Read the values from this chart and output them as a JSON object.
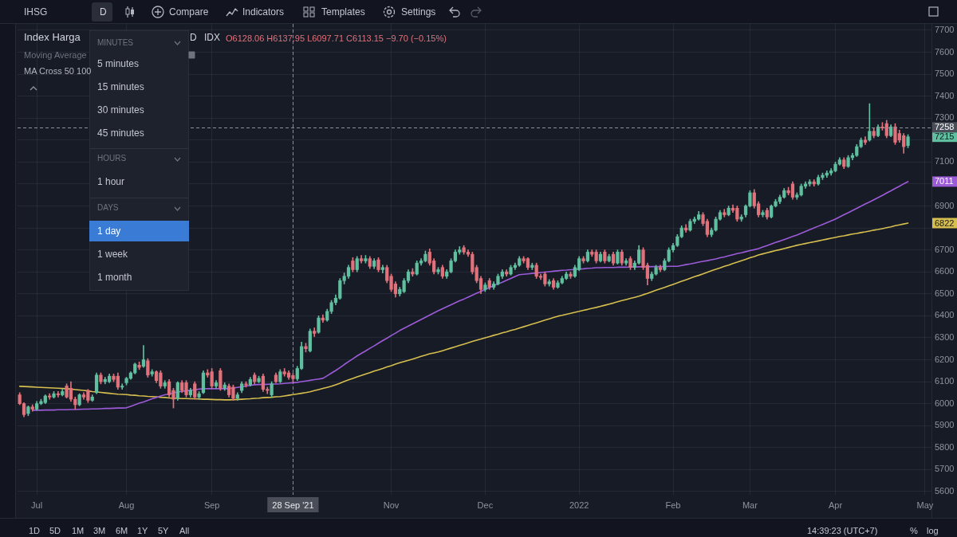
{
  "chart_data": {
    "type": "candlestick",
    "title": "Index Harga",
    "categories": [
      null,
      null,
      null,
      null,
      "Jul",
      null,
      null,
      null,
      null,
      null,
      null,
      null,
      null,
      null,
      null,
      null,
      null,
      null,
      null,
      null,
      null,
      null,
      null,
      null,
      null,
      "Aug",
      null,
      null,
      null,
      null,
      null,
      null,
      null,
      null,
      null,
      null,
      null,
      null,
      null,
      null,
      null,
      null,
      null,
      null,
      null,
      "Sep",
      null,
      null,
      null,
      null,
      null,
      null,
      null,
      null,
      null,
      null,
      null,
      null,
      null,
      null,
      null,
      null,
      null,
      null,
      "28 Sep '21",
      null,
      null,
      null,
      null,
      null,
      null,
      null,
      null,
      null,
      null,
      null,
      null,
      null,
      null,
      null,
      null,
      null,
      null,
      null,
      null,
      null,
      null,
      "Nov",
      null,
      null,
      null,
      null,
      null,
      null,
      null,
      null,
      null,
      null,
      null,
      null,
      null,
      null,
      null,
      null,
      null,
      null,
      null,
      null,
      null,
      "Dec",
      null,
      null,
      null,
      null,
      null,
      null,
      null,
      null,
      null,
      null,
      null,
      null,
      null,
      null,
      null,
      null,
      null,
      null,
      null,
      null,
      null,
      "2022",
      null,
      null,
      null,
      null,
      null,
      null,
      null,
      null,
      null,
      null,
      null,
      null,
      null,
      null,
      null,
      null,
      null,
      null,
      null,
      null,
      null,
      "Feb",
      null,
      null,
      null,
      null,
      null,
      null,
      null,
      null,
      null,
      null,
      null,
      null,
      null,
      null,
      null,
      null,
      null,
      "Mar",
      null,
      null,
      null,
      null,
      null,
      null,
      null,
      null,
      null,
      null,
      null,
      null,
      null,
      null,
      null,
      null,
      null,
      null,
      null,
      "Apr",
      null,
      null,
      null,
      null,
      null,
      null,
      null,
      null,
      null,
      null,
      null,
      null,
      null,
      null,
      null,
      null,
      null,
      null,
      null,
      null,
      "May",
      null
    ],
    "ylim": [
      5585,
      7729
    ],
    "yticks": [
      5600,
      5700,
      5800,
      5900,
      6000,
      6100,
      6200,
      6300,
      6400,
      6500,
      6600,
      6700,
      {
        "value": 6800,
        "label": null
      },
      6900,
      {
        "value": 7000,
        "label": null
      },
      7100,
      {
        "value": 7200,
        "label": null
      },
      7300,
      7400,
      7500,
      7600,
      7700
    ],
    "grid": true,
    "series": [
      {
        "type": "line",
        "color": "#9c5bd8",
        "values": [
          null,
          null,
          null,
          5970,
          5970,
          5970,
          5971,
          5971,
          5971,
          5972,
          5972,
          5972,
          5973,
          5973,
          5974,
          5975,
          5975,
          5976,
          5976,
          5977,
          5978,
          5978,
          5979,
          5980,
          5980,
          5981,
          5988,
          5995,
          6002,
          6008,
          6015,
          6022,
          6028,
          6035,
          6040,
          6044,
          6049,
          6053,
          6056,
          6058,
          6061,
          6063,
          6066,
          6068,
          6068,
          6068,
          6068,
          6068,
          6068,
          6068,
          6071,
          6074,
          6077,
          6080,
          6083,
          6086,
          6087,
          6087,
          6088,
          6089,
          6089,
          6090,
          6092,
          6094,
          6095,
          6097,
          6100,
          6103,
          6106,
          6109,
          6112,
          6115,
          6127,
          6139,
          6151,
          6164,
          6178,
          6191,
          6204,
          6217,
          6229,
          6240,
          6252,
          6263,
          6275,
          6287,
          6298,
          6310,
          6321,
          6333,
          6343,
          6353,
          6363,
          6373,
          6383,
          6393,
          6403,
          6413,
          6423,
          6432,
          6441,
          6450,
          6459,
          6468,
          6476,
          6485,
          6494,
          6503,
          6511,
          6520,
          6528,
          6537,
          6545,
          6553,
          6562,
          6570,
          6579,
          6587,
          6589,
          6591,
          6593,
          6595,
          6597,
          6599,
          6601,
          6603,
          6605,
          6607,
          6608,
          6610,
          6611,
          6613,
          6614,
          6616,
          6617,
          6619,
          6619,
          6620,
          6620,
          6620,
          6621,
          6621,
          6621,
          6622,
          6622,
          6623,
          6623,
          6623,
          6624,
          6624,
          6624,
          6624,
          6625,
          6625,
          6625,
          6629,
          6633,
          6636,
          6640,
          6644,
          6648,
          6651,
          6655,
          6659,
          6664,
          6668,
          6673,
          6678,
          6683,
          6687,
          6692,
          6697,
          6701,
          6706,
          6713,
          6720,
          6727,
          6734,
          6740,
          6747,
          6754,
          6761,
          6768,
          6776,
          6784,
          6792,
          6800,
          6808,
          6816,
          6824,
          6832,
          6840,
          6850,
          6860,
          6869,
          6879,
          6889,
          6899,
          6909,
          6918,
          6928,
          6938,
          6948,
          6959,
          6969,
          6980,
          6990,
          7001,
          7011,
          null,
          null,
          null,
          null,
          null
        ]
      },
      {
        "type": "line",
        "color": "#d6bf4e",
        "values": [
          6079,
          6078,
          6077,
          6076,
          6075,
          6074,
          6073,
          6072,
          6071,
          6070,
          6069,
          6068,
          6066,
          6064,
          6062,
          6060,
          6058,
          6055,
          6053,
          6051,
          6049,
          6047,
          6045,
          6043,
          6042,
          6041,
          6039,
          6038,
          6036,
          6035,
          6033,
          6032,
          6031,
          6029,
          6028,
          6026,
          6025,
          6024,
          6023,
          6023,
          6022,
          6022,
          6021,
          6020,
          6020,
          6019,
          6018,
          6018,
          6017,
          6017,
          6018,
          6019,
          6020,
          6021,
          6022,
          6024,
          6025,
          6027,
          6028,
          6029,
          6031,
          6032,
          6035,
          6038,
          6041,
          6044,
          6047,
          6050,
          6054,
          6059,
          6064,
          6069,
          6074,
          6079,
          6086,
          6093,
          6101,
          6108,
          6115,
          6122,
          6128,
          6135,
          6141,
          6148,
          6154,
          6160,
          6167,
          6173,
          6180,
          6186,
          6192,
          6197,
          6203,
          6209,
          6215,
          6221,
          6227,
          6231,
          6235,
          6241,
          6247,
          6253,
          6259,
          6265,
          6271,
          6277,
          6283,
          6289,
          6294,
          6300,
          6305,
          6311,
          6316,
          6322,
          6327,
          6333,
          6338,
          6344,
          6350,
          6356,
          6362,
          6368,
          6374,
          6380,
          6386,
          6392,
          6398,
          6402,
          6407,
          6411,
          6416,
          6420,
          6425,
          6429,
          6434,
          6438,
          6443,
          6448,
          6453,
          6458,
          6464,
          6469,
          6474,
          6479,
          6484,
          6489,
          6496,
          6502,
          6509,
          6516,
          6523,
          6529,
          6536,
          6543,
          6550,
          6557,
          6564,
          6571,
          6578,
          6584,
          6591,
          6598,
          6605,
          6612,
          6618,
          6625,
          6631,
          6638,
          6644,
          6651,
          6657,
          6664,
          6670,
          6677,
          6682,
          6687,
          6692,
          6697,
          6701,
          6706,
          6711,
          6716,
          6721,
          6725,
          6729,
          6733,
          6737,
          6741,
          6745,
          6749,
          6753,
          6757,
          6761,
          6764,
          6768,
          6772,
          6775,
          6779,
          6782,
          6786,
          6790,
          6793,
          6797,
          6801,
          6805,
          6810,
          6814,
          6818,
          6822,
          null,
          null,
          null,
          null,
          null
        ]
      },
      {
        "ohlc": [
          [
            6040,
            6050,
            5995,
            6000
          ],
          [
            6000,
            6005,
            5940,
            5950
          ],
          [
            5955,
            5990,
            5945,
            5985
          ],
          [
            5985,
            5995,
            5965,
            5975
          ],
          [
            5975,
            6010,
            5970,
            6000
          ],
          [
            6000,
            6020,
            5995,
            6010
          ],
          [
            6005,
            6040,
            6000,
            6035
          ],
          [
            6035,
            6045,
            6020,
            6030
          ],
          [
            6030,
            6055,
            6025,
            6045
          ],
          [
            6045,
            6055,
            6030,
            6040
          ],
          [
            6040,
            6065,
            6035,
            6055
          ],
          [
            6080,
            6090,
            6025,
            6030
          ],
          [
            6070,
            6100,
            6010,
            6020
          ],
          [
            6020,
            6030,
            5975,
            5995
          ],
          [
            5995,
            6045,
            5990,
            6040
          ],
          [
            6040,
            6050,
            6020,
            6030
          ],
          [
            6060,
            6065,
            6005,
            6015
          ],
          [
            6015,
            6040,
            6010,
            6030
          ],
          [
            6050,
            6140,
            6045,
            6130
          ],
          [
            6130,
            6140,
            6090,
            6100
          ],
          [
            6100,
            6120,
            6090,
            6110
          ],
          [
            6100,
            6135,
            6095,
            6125
          ],
          [
            6125,
            6135,
            6100,
            6110
          ],
          [
            6125,
            6140,
            6065,
            6075
          ],
          [
            6075,
            6090,
            6065,
            6080
          ],
          [
            6095,
            6120,
            6085,
            6115
          ],
          [
            6115,
            6145,
            6110,
            6140
          ],
          [
            6140,
            6185,
            6135,
            6180
          ],
          [
            6175,
            6190,
            6155,
            6165
          ],
          [
            6170,
            6265,
            6165,
            6200
          ],
          [
            6195,
            6205,
            6120,
            6130
          ],
          [
            6135,
            6155,
            6125,
            6145
          ],
          [
            6145,
            6150,
            6095,
            6105
          ],
          [
            6140,
            6150,
            6070,
            6080
          ],
          [
            6080,
            6105,
            6070,
            6095
          ],
          [
            6100,
            6110,
            6030,
            6040
          ],
          [
            6060,
            6070,
            5980,
            6020
          ],
          [
            6025,
            6100,
            6015,
            6095
          ],
          [
            6095,
            6105,
            6050,
            6060
          ],
          [
            6095,
            6105,
            6030,
            6040
          ],
          [
            6040,
            6070,
            6030,
            6060
          ],
          [
            6090,
            6100,
            6020,
            6030
          ],
          [
            6030,
            6055,
            6020,
            6045
          ],
          [
            6050,
            6150,
            6045,
            6140
          ],
          [
            6140,
            6155,
            6120,
            6130
          ],
          [
            6145,
            6160,
            6070,
            6080
          ],
          [
            6080,
            6105,
            6070,
            6095
          ],
          [
            6150,
            6160,
            6060,
            6070
          ],
          [
            6070,
            6095,
            6060,
            6085
          ],
          [
            6080,
            6090,
            6030,
            6040
          ],
          [
            6075,
            6085,
            6015,
            6025
          ],
          [
            6025,
            6050,
            6015,
            6040
          ],
          [
            6060,
            6100,
            6050,
            6090
          ],
          [
            6090,
            6100,
            6075,
            6085
          ],
          [
            6085,
            6120,
            6080,
            6110
          ],
          [
            6130,
            6140,
            6090,
            6100
          ],
          [
            6100,
            6125,
            6095,
            6115
          ],
          [
            6125,
            6135,
            6055,
            6065
          ],
          [
            6065,
            6075,
            6045,
            6060
          ],
          [
            6040,
            6100,
            6030,
            6090
          ],
          [
            6130,
            6140,
            6095,
            6100
          ],
          [
            6100,
            6155,
            6095,
            6145
          ],
          [
            6145,
            6160,
            6125,
            6135
          ],
          [
            6140,
            6150,
            6110,
            6120
          ],
          [
            6128.06,
            6137.95,
            6097.71,
            6113.15
          ],
          [
            6113,
            6170,
            6105,
            6160
          ],
          [
            6160,
            6280,
            6155,
            6260
          ],
          [
            6260,
            6275,
            6235,
            6250
          ],
          [
            6240,
            6340,
            6235,
            6330
          ],
          [
            6330,
            6345,
            6305,
            6320
          ],
          [
            6325,
            6400,
            6320,
            6390
          ],
          [
            6390,
            6405,
            6370,
            6380
          ],
          [
            6380,
            6430,
            6375,
            6420
          ],
          [
            6420,
            6470,
            6410,
            6460
          ],
          [
            6460,
            6495,
            6450,
            6480
          ],
          [
            6480,
            6570,
            6475,
            6560
          ],
          [
            6560,
            6595,
            6545,
            6580
          ],
          [
            6580,
            6630,
            6570,
            6620
          ],
          [
            6650,
            6665,
            6600,
            6610
          ],
          [
            6610,
            6670,
            6600,
            6660
          ],
          [
            6660,
            6675,
            6640,
            6650
          ],
          [
            6650,
            6675,
            6640,
            6660
          ],
          [
            6660,
            6670,
            6615,
            6625
          ],
          [
            6625,
            6660,
            6615,
            6650
          ],
          [
            6655,
            6665,
            6600,
            6610
          ],
          [
            6610,
            6630,
            6595,
            6620
          ],
          [
            6620,
            6630,
            6550,
            6560
          ],
          [
            6580,
            6590,
            6510,
            6520
          ],
          [
            6545,
            6555,
            6485,
            6500
          ],
          [
            6500,
            6530,
            6490,
            6520
          ],
          [
            6510,
            6570,
            6505,
            6560
          ],
          [
            6560,
            6610,
            6550,
            6600
          ],
          [
            6600,
            6615,
            6580,
            6590
          ],
          [
            6590,
            6650,
            6585,
            6640
          ],
          [
            6640,
            6660,
            6630,
            6650
          ],
          [
            6650,
            6695,
            6645,
            6680
          ],
          [
            6690,
            6705,
            6630,
            6640
          ],
          [
            6650,
            6660,
            6590,
            6600
          ],
          [
            6600,
            6620,
            6590,
            6610
          ],
          [
            6620,
            6630,
            6570,
            6580
          ],
          [
            6580,
            6610,
            6570,
            6600
          ],
          [
            6600,
            6660,
            6595,
            6650
          ],
          [
            6650,
            6700,
            6645,
            6690
          ],
          [
            6690,
            6715,
            6680,
            6700
          ],
          [
            6710,
            6720,
            6680,
            6690
          ],
          [
            6690,
            6700,
            6670,
            6680
          ],
          [
            6680,
            6690,
            6590,
            6600
          ],
          [
            6620,
            6630,
            6550,
            6560
          ],
          [
            6570,
            6580,
            6500,
            6520
          ],
          [
            6520,
            6550,
            6510,
            6540
          ],
          [
            6560,
            6570,
            6520,
            6530
          ],
          [
            6530,
            6555,
            6520,
            6545
          ],
          [
            6545,
            6590,
            6540,
            6580
          ],
          [
            6580,
            6610,
            6570,
            6600
          ],
          [
            6600,
            6610,
            6580,
            6590
          ],
          [
            6590,
            6630,
            6585,
            6620
          ],
          [
            6620,
            6640,
            6610,
            6630
          ],
          [
            6630,
            6670,
            6625,
            6660
          ],
          [
            6660,
            6670,
            6640,
            6650
          ],
          [
            6660,
            6665,
            6610,
            6620
          ],
          [
            6620,
            6640,
            6610,
            6630
          ],
          [
            6630,
            6640,
            6570,
            6580
          ],
          [
            6580,
            6590,
            6565,
            6575
          ],
          [
            6590,
            6600,
            6535,
            6545
          ],
          [
            6545,
            6565,
            6535,
            6555
          ],
          [
            6560,
            6570,
            6520,
            6530
          ],
          [
            6530,
            6560,
            6525,
            6550
          ],
          [
            6550,
            6580,
            6545,
            6570
          ],
          [
            6570,
            6600,
            6565,
            6590
          ],
          [
            6590,
            6600,
            6570,
            6580
          ],
          [
            6580,
            6630,
            6575,
            6620
          ],
          [
            6610,
            6670,
            6605,
            6660
          ],
          [
            6660,
            6670,
            6640,
            6650
          ],
          [
            6650,
            6700,
            6645,
            6690
          ],
          [
            6690,
            6700,
            6670,
            6680
          ],
          [
            6690,
            6700,
            6640,
            6650
          ],
          [
            6650,
            6690,
            6645,
            6680
          ],
          [
            6690,
            6700,
            6640,
            6650
          ],
          [
            6650,
            6680,
            6645,
            6670
          ],
          [
            6680,
            6690,
            6630,
            6640
          ],
          [
            6640,
            6700,
            6635,
            6690
          ],
          [
            6690,
            6700,
            6630,
            6640
          ],
          [
            6640,
            6660,
            6630,
            6650
          ],
          [
            6660,
            6670,
            6610,
            6620
          ],
          [
            6620,
            6650,
            6610,
            6640
          ],
          [
            6640,
            6720,
            6635,
            6700
          ],
          [
            6700,
            6710,
            6610,
            6620
          ],
          [
            6630,
            6640,
            6540,
            6570
          ],
          [
            6570,
            6600,
            6560,
            6590
          ],
          [
            6590,
            6630,
            6585,
            6620
          ],
          [
            6620,
            6630,
            6600,
            6610
          ],
          [
            6610,
            6660,
            6605,
            6650
          ],
          [
            6650,
            6710,
            6645,
            6700
          ],
          [
            6700,
            6730,
            6690,
            6720
          ],
          [
            6720,
            6770,
            6715,
            6760
          ],
          [
            6760,
            6810,
            6755,
            6800
          ],
          [
            6800,
            6815,
            6780,
            6790
          ],
          [
            6790,
            6840,
            6785,
            6830
          ],
          [
            6830,
            6850,
            6820,
            6840
          ],
          [
            6840,
            6875,
            6835,
            6860
          ],
          [
            6860,
            6870,
            6810,
            6820
          ],
          [
            6830,
            6840,
            6760,
            6770
          ],
          [
            6770,
            6800,
            6760,
            6790
          ],
          [
            6790,
            6850,
            6785,
            6840
          ],
          [
            6840,
            6880,
            6835,
            6870
          ],
          [
            6870,
            6885,
            6850,
            6860
          ],
          [
            6860,
            6900,
            6855,
            6890
          ],
          [
            6890,
            6905,
            6870,
            6880
          ],
          [
            6890,
            6900,
            6830,
            6840
          ],
          [
            6840,
            6860,
            6830,
            6850
          ],
          [
            6860,
            6905,
            6850,
            6900
          ],
          [
            6900,
            6970,
            6895,
            6960
          ],
          [
            6960,
            6975,
            6890,
            6900
          ],
          [
            6910,
            6920,
            6850,
            6860
          ],
          [
            6860,
            6880,
            6850,
            6870
          ],
          [
            6880,
            6890,
            6840,
            6850
          ],
          [
            6850,
            6905,
            6845,
            6900
          ],
          [
            6900,
            6930,
            6895,
            6920
          ],
          [
            6920,
            6950,
            6910,
            6940
          ],
          [
            6940,
            6980,
            6935,
            6970
          ],
          [
            6970,
            6985,
            6950,
            6960
          ],
          [
            7000,
            7010,
            6930,
            6940
          ],
          [
            6940,
            6960,
            6930,
            6950
          ],
          [
            6950,
            7000,
            6945,
            6990
          ],
          [
            6990,
            7010,
            6980,
            7000
          ],
          [
            7000,
            7020,
            6990,
            7010
          ],
          [
            7010,
            7020,
            6990,
            7000
          ],
          [
            7000,
            7040,
            6995,
            7030
          ],
          [
            7030,
            7050,
            7020,
            7040
          ],
          [
            7040,
            7060,
            7030,
            7050
          ],
          [
            7050,
            7070,
            7040,
            7060
          ],
          [
            7060,
            7100,
            7055,
            7090
          ],
          [
            7090,
            7120,
            7085,
            7110
          ],
          [
            7110,
            7120,
            7070,
            7080
          ],
          [
            7080,
            7130,
            7075,
            7120
          ],
          [
            7120,
            7140,
            7110,
            7130
          ],
          [
            7130,
            7180,
            7125,
            7170
          ],
          [
            7170,
            7210,
            7165,
            7200
          ],
          [
            7200,
            7215,
            7180,
            7190
          ],
          [
            7200,
            7366,
            7195,
            7240
          ],
          [
            7240,
            7255,
            7210,
            7220
          ],
          [
            7220,
            7270,
            7215,
            7260
          ],
          [
            7260,
            7280,
            7245,
            7255
          ],
          [
            7275,
            7290,
            7210,
            7220
          ],
          [
            7220,
            7270,
            7215,
            7260
          ],
          [
            7260,
            7275,
            7180,
            7190
          ],
          [
            7230,
            7245,
            7190,
            7200
          ],
          [
            7220,
            7230,
            7140,
            7170
          ],
          [
            7175,
            7225,
            7165,
            7215
          ],
          null,
          null,
          null,
          null,
          null
        ],
        "colors": [
          "#e0727c",
          "#e0727c",
          "#5fbf9f",
          "#e0727c",
          "#5fbf9f",
          "#5fbf9f",
          "#5fbf9f",
          "#e0727c",
          "#5fbf9f",
          "#e0727c",
          "#5fbf9f",
          "#e0727c",
          "#e0727c",
          "#e0727c",
          "#5fbf9f",
          "#e0727c",
          "#e0727c",
          "#5fbf9f",
          "#5fbf9f",
          "#e0727c",
          "#5fbf9f",
          "#5fbf9f",
          "#e0727c",
          "#e0727c",
          "#5fbf9f",
          "#5fbf9f",
          "#5fbf9f",
          "#5fbf9f",
          "#e0727c",
          "#5fbf9f",
          "#e0727c",
          "#5fbf9f",
          "#e0727c",
          "#e0727c",
          "#5fbf9f",
          "#e0727c",
          "#e0727c",
          "#5fbf9f",
          "#e0727c",
          "#e0727c",
          "#5fbf9f",
          "#e0727c",
          "#5fbf9f",
          "#5fbf9f",
          "#e0727c",
          "#e0727c",
          "#5fbf9f",
          "#e0727c",
          "#5fbf9f",
          "#e0727c",
          "#e0727c",
          "#5fbf9f",
          "#5fbf9f",
          "#e0727c",
          "#5fbf9f",
          "#e0727c",
          "#5fbf9f",
          "#e0727c",
          "#e0727c",
          "#5fbf9f",
          "#e0727c",
          "#5fbf9f",
          "#e0727c",
          "#e0727c",
          "#e0727c",
          "#5fbf9f",
          "#5fbf9f",
          "#e0727c",
          "#5fbf9f",
          "#e0727c",
          "#5fbf9f",
          "#e0727c",
          "#5fbf9f",
          "#5fbf9f",
          "#5fbf9f",
          "#5fbf9f",
          "#5fbf9f",
          "#5fbf9f",
          "#e0727c",
          "#5fbf9f",
          "#e0727c",
          "#5fbf9f",
          "#e0727c",
          "#5fbf9f",
          "#e0727c",
          "#5fbf9f",
          "#e0727c",
          "#e0727c",
          "#e0727c",
          "#5fbf9f",
          "#5fbf9f",
          "#5fbf9f",
          "#e0727c",
          "#5fbf9f",
          "#5fbf9f",
          "#5fbf9f",
          "#e0727c",
          "#e0727c",
          "#5fbf9f",
          "#e0727c",
          "#5fbf9f",
          "#5fbf9f",
          "#5fbf9f",
          "#5fbf9f",
          "#e0727c",
          "#e0727c",
          "#e0727c",
          "#e0727c",
          "#e0727c",
          "#5fbf9f",
          "#e0727c",
          "#5fbf9f",
          "#5fbf9f",
          "#5fbf9f",
          "#e0727c",
          "#5fbf9f",
          "#5fbf9f",
          "#5fbf9f",
          "#e0727c",
          "#e0727c",
          "#5fbf9f",
          "#e0727c",
          "#e0727c",
          "#e0727c",
          "#5fbf9f",
          "#e0727c",
          "#5fbf9f",
          "#5fbf9f",
          "#5fbf9f",
          "#e0727c",
          "#5fbf9f",
          "#5fbf9f",
          "#e0727c",
          "#5fbf9f",
          "#e0727c",
          "#e0727c",
          "#5fbf9f",
          "#e0727c",
          "#5fbf9f",
          "#e0727c",
          "#5fbf9f",
          "#e0727c",
          "#5fbf9f",
          "#e0727c",
          "#5fbf9f",
          "#5fbf9f",
          "#e0727c",
          "#e0727c",
          "#5fbf9f",
          "#5fbf9f",
          "#e0727c",
          "#5fbf9f",
          "#5fbf9f",
          "#5fbf9f",
          "#5fbf9f",
          "#5fbf9f",
          "#e0727c",
          "#5fbf9f",
          "#5fbf9f",
          "#5fbf9f",
          "#e0727c",
          "#e0727c",
          "#5fbf9f",
          "#5fbf9f",
          "#5fbf9f",
          "#e0727c",
          "#5fbf9f",
          "#e0727c",
          "#e0727c",
          "#5fbf9f",
          "#5fbf9f",
          "#5fbf9f",
          "#e0727c",
          "#e0727c",
          "#5fbf9f",
          "#e0727c",
          "#5fbf9f",
          "#5fbf9f",
          "#5fbf9f",
          "#5fbf9f",
          "#e0727c",
          "#e0727c",
          "#5fbf9f",
          "#5fbf9f",
          "#5fbf9f",
          "#5fbf9f",
          "#e0727c",
          "#5fbf9f",
          "#5fbf9f",
          "#5fbf9f",
          "#5fbf9f",
          "#5fbf9f",
          "#5fbf9f",
          "#e0727c",
          "#5fbf9f",
          "#5fbf9f",
          "#5fbf9f",
          "#5fbf9f",
          "#e0727c",
          "#5fbf9f",
          "#e0727c",
          "#5fbf9f",
          "#e0727c",
          "#e0727c",
          "#5fbf9f",
          "#e0727c",
          "#e0727c",
          "#e0727c",
          "#5fbf9f",
          null,
          null,
          null,
          null,
          null
        ]
      }
    ],
    "ref_lines": [
      {
        "axis": "x",
        "value": "28 Sep '21",
        "line_style": "dashed",
        "color": "#8d909a"
      },
      {
        "axis": "y",
        "value": 7258,
        "label": "7258",
        "line_style": "dashed",
        "color": "#8d909a"
      }
    ],
    "annotations": [
      "IHSG",
      "D",
      "Compare",
      "Indicators",
      "Templates",
      "Settings",
      "Moving Average",
      "MA Cross 50 100",
      "D",
      "IDX",
      "O6128.06 H6137.95 L6097.71 C6113.15 −9.70 (−0.15%)",
      "MINUTES",
      "5 minutes",
      "15 minutes",
      "30 minutes",
      "45 minutes",
      "HOURS",
      "1 hour",
      "DAYS",
      "1 day",
      "1 week",
      "1 month",
      "1D",
      "5D",
      "1M",
      "3M",
      "6M",
      "1Y",
      "5Y",
      "All",
      "14:39:23 (UTC+7)",
      "%",
      "log",
      {
        "text": "7215",
        "y": 7215
      },
      {
        "text": "7011",
        "y": 7011
      },
      {
        "text": "6822",
        "y": 6822
      }
    ]
  }
}
